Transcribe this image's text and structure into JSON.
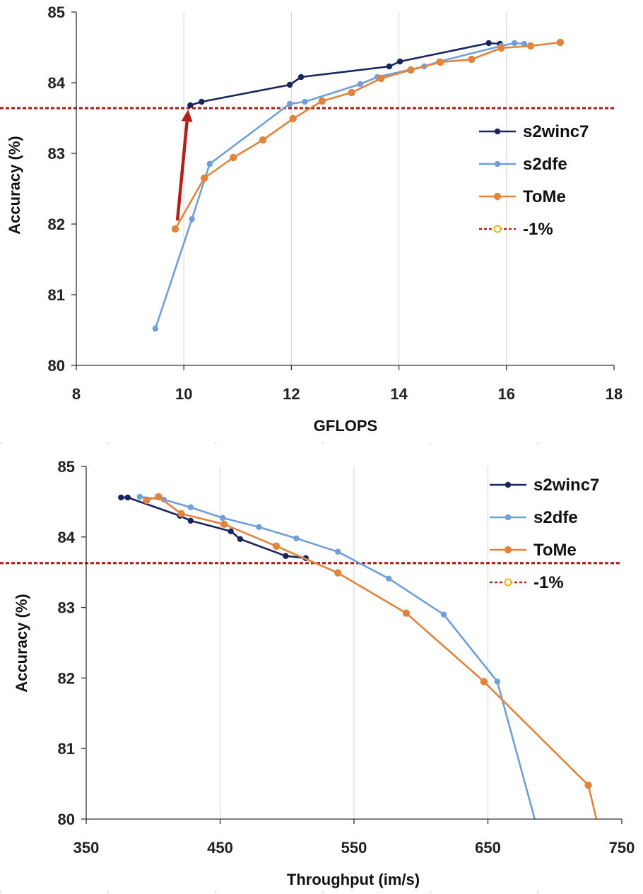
{
  "colors": {
    "s2winc7": "#17255c",
    "s2dfe": "#6e9fd6",
    "ToMe": "#e0843e",
    "minus1": "#a8271c",
    "arrow": "#b2221a"
  },
  "chart_data": [
    {
      "type": "line",
      "xlabel": "GFLOPS",
      "ylabel": "Accuracy (%)",
      "xlim": [
        8,
        18
      ],
      "ylim": [
        80,
        85
      ],
      "xticks": [
        "8",
        "10",
        "12",
        "14",
        "16",
        "18"
      ],
      "yticks": [
        "80",
        "81",
        "82",
        "83",
        "84",
        "85"
      ],
      "grid": "vertical",
      "legend_position": "right",
      "series": [
        {
          "name": "s2winc7",
          "color_key": "s2winc7",
          "x": [
            10.12,
            10.33,
            11.97,
            12.18,
            13.82,
            14.02,
            15.67,
            15.88
          ],
          "y": [
            83.68,
            83.73,
            83.97,
            84.08,
            84.23,
            84.3,
            84.56,
            84.55
          ]
        },
        {
          "name": "s2dfe",
          "color_key": "s2dfe",
          "x": [
            9.47,
            10.15,
            10.48,
            11.97,
            12.25,
            13.28,
            13.6,
            14.47,
            14.75,
            15.9,
            16.15,
            16.33
          ],
          "y": [
            80.52,
            82.07,
            82.85,
            83.7,
            83.73,
            83.98,
            84.08,
            84.23,
            84.3,
            84.52,
            84.56,
            84.55
          ]
        },
        {
          "name": "ToMe",
          "color_key": "ToMe",
          "x": [
            9.84,
            10.38,
            10.92,
            11.47,
            12.03,
            12.57,
            13.12,
            13.67,
            14.22,
            14.77,
            15.35,
            15.9,
            16.45,
            17.0
          ],
          "y": [
            81.93,
            82.65,
            82.94,
            83.19,
            83.49,
            83.74,
            83.86,
            84.06,
            84.18,
            84.29,
            84.33,
            84.49,
            84.52,
            84.57
          ]
        }
      ],
      "reference_line": {
        "name": "-1%",
        "y": 83.64,
        "color_key": "minus1"
      },
      "annotations": [
        {
          "type": "arrow",
          "from": [
            9.88,
            82.05
          ],
          "to": [
            10.08,
            83.62
          ],
          "color_key": "arrow"
        }
      ]
    },
    {
      "type": "line",
      "xlabel": "Throughput (im/s)",
      "ylabel": "Accuracy (%)",
      "xlim": [
        350,
        750
      ],
      "ylim": [
        80,
        85
      ],
      "xticks": [
        "350",
        "450",
        "550",
        "650",
        "750"
      ],
      "yticks": [
        "80",
        "81",
        "82",
        "83",
        "84",
        "85"
      ],
      "grid": "vertical",
      "legend_position": "top-right",
      "series": [
        {
          "name": "s2winc7",
          "color_key": "s2winc7",
          "x": [
            376,
            381,
            420,
            428,
            458,
            465,
            499,
            514
          ],
          "y": [
            84.56,
            84.56,
            84.3,
            84.23,
            84.08,
            83.97,
            83.73,
            83.7
          ]
        },
        {
          "name": "s2dfe",
          "color_key": "s2dfe",
          "x": [
            390,
            408,
            428,
            452,
            479,
            507,
            538,
            576,
            617,
            657,
            685
          ],
          "y": [
            84.57,
            84.53,
            84.42,
            84.27,
            84.14,
            83.98,
            83.79,
            83.41,
            82.9,
            81.95,
            80.0
          ]
        },
        {
          "name": "ToMe",
          "color_key": "ToMe",
          "x": [
            395,
            404,
            421,
            453,
            492,
            538,
            589,
            647,
            725,
            731
          ],
          "y": [
            84.52,
            84.57,
            84.33,
            84.18,
            83.87,
            83.49,
            82.92,
            81.95,
            80.48,
            80.0
          ]
        }
      ],
      "reference_line": {
        "name": "-1%",
        "y": 83.63,
        "color_key": "minus1"
      }
    }
  ]
}
